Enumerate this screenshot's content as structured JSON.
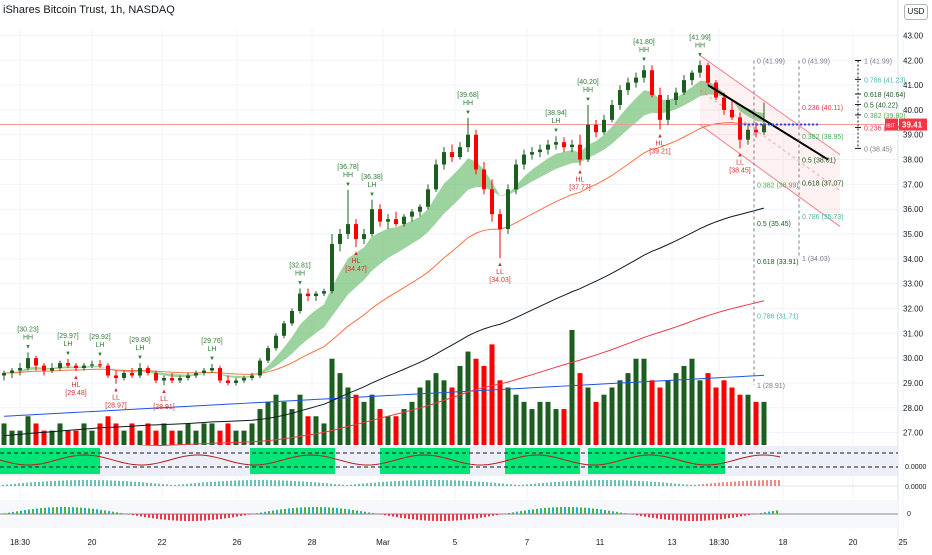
{
  "header": {
    "title": "iShares Bitcoin Trust, 1h, NASDAQ",
    "currency_button": "USD"
  },
  "colors": {
    "up": "#1b5e20",
    "down": "#ff0000",
    "ema_band": "#4caf50",
    "grid": "#f0f3fa",
    "price_line": "#ef9a9a",
    "fib": "#787b86",
    "fib_teal": "#4db6ac",
    "channel": "#f23645",
    "current_price_bg": "#f23645",
    "volume_avg": "#1e53e5",
    "band_green": "#00e676"
  },
  "chart_data": {
    "type": "candlestick",
    "ticker_label": "IBIT",
    "current_price": "39.41",
    "y_axis": {
      "min": 26.5,
      "max": 43.3,
      "ticks": [
        "43.00",
        "42.00",
        "41.00",
        "40.00",
        "39.00",
        "38.00",
        "37.00",
        "36.00",
        "35.00",
        "34.00",
        "33.00",
        "32.00",
        "31.00",
        "30.00",
        "29.00",
        "28.00",
        "27.00"
      ]
    },
    "x_axis": {
      "ticks": [
        "18:30",
        "20",
        "22",
        "26",
        "28",
        "Mar",
        "5",
        "7",
        "11",
        "13",
        "18:30",
        "18",
        "20",
        "25"
      ]
    },
    "candles": [
      [
        29.3,
        29.5,
        29.1,
        29.4
      ],
      [
        29.4,
        29.6,
        29.2,
        29.5
      ],
      [
        29.5,
        29.8,
        29.3,
        29.6
      ],
      [
        29.6,
        30.23,
        29.5,
        30.0
      ],
      [
        30.0,
        30.1,
        29.5,
        29.7
      ],
      [
        29.7,
        29.8,
        29.3,
        29.5
      ],
      [
        29.5,
        29.8,
        29.4,
        29.6
      ],
      [
        29.6,
        29.9,
        29.5,
        29.8
      ],
      [
        29.8,
        29.97,
        29.6,
        29.7
      ],
      [
        29.7,
        29.8,
        29.48,
        29.6
      ],
      [
        29.6,
        29.8,
        29.5,
        29.7
      ],
      [
        29.7,
        29.9,
        29.6,
        29.75
      ],
      [
        29.75,
        29.92,
        29.6,
        29.7
      ],
      [
        29.7,
        29.8,
        29.2,
        29.3
      ],
      [
        29.3,
        29.5,
        28.97,
        29.2
      ],
      [
        29.2,
        29.5,
        29.1,
        29.4
      ],
      [
        29.4,
        29.6,
        29.2,
        29.3
      ],
      [
        29.3,
        29.8,
        29.2,
        29.6
      ],
      [
        29.6,
        29.7,
        29.3,
        29.4
      ],
      [
        29.4,
        29.5,
        29.0,
        29.1
      ],
      [
        29.1,
        29.3,
        28.91,
        29.2
      ],
      [
        29.2,
        29.4,
        29.0,
        29.1
      ],
      [
        29.1,
        29.3,
        29.0,
        29.2
      ],
      [
        29.2,
        29.4,
        29.1,
        29.3
      ],
      [
        29.3,
        29.5,
        29.2,
        29.4
      ],
      [
        29.4,
        29.6,
        29.3,
        29.5
      ],
      [
        29.5,
        29.76,
        29.4,
        29.6
      ],
      [
        29.6,
        29.7,
        29.0,
        29.1
      ],
      [
        29.1,
        29.3,
        28.9,
        29.0
      ],
      [
        29.0,
        29.2,
        28.9,
        29.1
      ],
      [
        29.1,
        29.3,
        29.0,
        29.2
      ],
      [
        29.2,
        29.4,
        29.1,
        29.3
      ],
      [
        29.3,
        30.0,
        29.2,
        29.9
      ],
      [
        29.9,
        30.5,
        29.8,
        30.4
      ],
      [
        30.4,
        31.0,
        30.3,
        30.9
      ],
      [
        30.9,
        31.5,
        30.8,
        31.4
      ],
      [
        31.4,
        32.0,
        31.3,
        31.9
      ],
      [
        31.9,
        32.81,
        31.8,
        32.6
      ],
      [
        32.6,
        32.8,
        32.3,
        32.5
      ],
      [
        32.5,
        32.7,
        32.3,
        32.6
      ],
      [
        32.6,
        32.8,
        32.5,
        32.7
      ],
      [
        32.7,
        35.0,
        32.6,
        34.6
      ],
      [
        34.6,
        35.2,
        34.3,
        35.0
      ],
      [
        35.0,
        36.78,
        34.8,
        35.4
      ],
      [
        35.4,
        35.6,
        34.47,
        34.8
      ],
      [
        34.8,
        35.2,
        34.6,
        35.0
      ],
      [
        35.0,
        36.38,
        34.9,
        36.0
      ],
      [
        36.0,
        36.2,
        35.3,
        35.5
      ],
      [
        35.5,
        35.8,
        35.2,
        35.6
      ],
      [
        35.6,
        35.9,
        35.3,
        35.4
      ],
      [
        35.4,
        35.8,
        35.3,
        35.7
      ],
      [
        35.7,
        36.0,
        35.5,
        35.9
      ],
      [
        35.9,
        36.2,
        35.7,
        36.1
      ],
      [
        36.1,
        37.0,
        36.0,
        36.8
      ],
      [
        36.8,
        38.0,
        36.7,
        37.8
      ],
      [
        37.8,
        38.5,
        37.6,
        38.3
      ],
      [
        38.3,
        38.6,
        37.9,
        38.1
      ],
      [
        38.1,
        38.7,
        38.0,
        38.5
      ],
      [
        38.5,
        39.68,
        38.3,
        39.0
      ],
      [
        39.0,
        39.2,
        37.4,
        37.6
      ],
      [
        37.6,
        37.9,
        36.6,
        36.8
      ],
      [
        36.8,
        37.2,
        35.5,
        35.8
      ],
      [
        35.8,
        36.0,
        34.03,
        35.2
      ],
      [
        35.2,
        37.0,
        35.0,
        36.8
      ],
      [
        36.8,
        38.0,
        36.6,
        37.8
      ],
      [
        37.8,
        38.4,
        37.6,
        38.2
      ],
      [
        38.2,
        38.5,
        38.0,
        38.3
      ],
      [
        38.3,
        38.6,
        38.1,
        38.4
      ],
      [
        38.4,
        38.8,
        38.2,
        38.6
      ],
      [
        38.6,
        38.94,
        38.4,
        38.7
      ],
      [
        38.7,
        38.9,
        38.3,
        38.5
      ],
      [
        38.5,
        38.8,
        38.3,
        38.6
      ],
      [
        38.6,
        39.0,
        37.77,
        38.0
      ],
      [
        38.0,
        40.2,
        37.9,
        39.4
      ],
      [
        39.4,
        39.6,
        38.9,
        39.1
      ],
      [
        39.1,
        39.8,
        39.0,
        39.6
      ],
      [
        39.6,
        40.4,
        39.5,
        40.2
      ],
      [
        40.2,
        41.0,
        40.0,
        40.8
      ],
      [
        40.8,
        41.3,
        40.6,
        41.1
      ],
      [
        41.1,
        41.5,
        40.9,
        41.3
      ],
      [
        41.3,
        41.8,
        41.1,
        41.6
      ],
      [
        41.6,
        41.8,
        40.5,
        40.6
      ],
      [
        40.6,
        40.9,
        39.21,
        39.6
      ],
      [
        39.6,
        40.6,
        39.4,
        40.4
      ],
      [
        40.4,
        40.9,
        40.2,
        40.7
      ],
      [
        40.7,
        41.4,
        40.6,
        41.2
      ],
      [
        41.2,
        41.6,
        41.0,
        41.5
      ],
      [
        41.5,
        41.99,
        41.3,
        41.8
      ],
      [
        41.8,
        41.9,
        41.0,
        41.1
      ],
      [
        41.1,
        41.2,
        40.4,
        40.5
      ],
      [
        40.5,
        40.7,
        39.8,
        40.0
      ],
      [
        40.0,
        40.4,
        39.6,
        39.7
      ],
      [
        39.7,
        39.9,
        38.45,
        38.8
      ],
      [
        38.8,
        39.4,
        38.6,
        39.2
      ],
      [
        39.2,
        39.5,
        38.9,
        39.1
      ],
      [
        39.1,
        40.3,
        39.0,
        39.41
      ]
    ],
    "volume_grades": [
      3,
      2,
      2,
      4,
      3,
      2,
      2,
      3,
      2,
      2,
      3,
      2,
      3,
      4,
      3,
      2,
      3,
      2,
      3,
      2,
      3,
      2,
      2,
      3,
      2,
      3,
      3,
      2,
      3,
      2,
      2,
      3,
      5,
      6,
      7,
      6,
      5,
      7,
      4,
      4,
      3,
      12,
      10,
      8,
      7,
      6,
      7,
      5,
      4,
      4,
      5,
      6,
      8,
      9,
      10,
      9,
      8,
      11,
      13,
      12,
      11,
      14,
      9,
      8,
      7,
      6,
      5,
      6,
      6,
      5,
      5,
      16,
      10,
      8,
      6,
      7,
      8,
      9,
      10,
      12,
      12,
      9,
      8,
      9,
      10,
      11,
      12,
      9,
      10,
      8,
      9,
      8,
      7,
      7,
      6,
      6
    ],
    "annotations": [
      {
        "text": "[30.23]",
        "sub": "HH",
        "i": 3,
        "at": "high",
        "color": "up"
      },
      {
        "text": "[29.97]",
        "sub": "LH",
        "i": 8,
        "at": "high",
        "color": "up"
      },
      {
        "text": "[29.48]",
        "sub": "HL",
        "i": 9,
        "at": "low",
        "color": "down"
      },
      {
        "text": "[29.92]",
        "sub": "LH",
        "i": 12,
        "at": "high",
        "color": "up"
      },
      {
        "text": "[28.97]",
        "sub": "LL",
        "i": 14,
        "at": "low",
        "color": "down"
      },
      {
        "text": "[29.80]",
        "sub": "LH",
        "i": 17,
        "at": "high",
        "color": "up"
      },
      {
        "text": "[28.91]",
        "sub": "LL",
        "i": 20,
        "at": "low",
        "color": "down"
      },
      {
        "text": "[29.76]",
        "sub": "LH",
        "i": 26,
        "at": "high",
        "color": "up"
      },
      {
        "text": "[32.81]",
        "sub": "HH",
        "i": 37,
        "at": "high",
        "color": "up"
      },
      {
        "text": "[36.78]",
        "sub": "HH",
        "i": 43,
        "at": "high",
        "color": "up"
      },
      {
        "text": "[34.47]",
        "sub": "HL",
        "i": 44,
        "at": "low",
        "color": "down"
      },
      {
        "text": "[36.38]",
        "sub": "LH",
        "i": 46,
        "at": "high",
        "color": "up"
      },
      {
        "text": "[39.68]",
        "sub": "HH",
        "i": 58,
        "at": "high",
        "color": "up"
      },
      {
        "text": "[34.03]",
        "sub": "LL",
        "i": 62,
        "at": "low",
        "color": "down"
      },
      {
        "text": "[38.94]",
        "sub": "LH",
        "i": 69,
        "at": "high",
        "color": "up"
      },
      {
        "text": "[37.77]",
        "sub": "HL",
        "i": 72,
        "at": "low",
        "color": "down"
      },
      {
        "text": "[40.20]",
        "sub": "HH",
        "i": 73,
        "at": "high",
        "color": "up"
      },
      {
        "text": "[41.80]",
        "sub": "HH",
        "i": 80,
        "at": "high",
        "color": "up"
      },
      {
        "text": "[39.21]",
        "sub": "HL",
        "i": 82,
        "at": "low",
        "color": "down"
      },
      {
        "text": "[41.99]",
        "sub": "HH",
        "i": 87,
        "at": "high",
        "color": "up"
      },
      {
        "text": "[38.45]",
        "sub": "LL",
        "i": 92,
        "at": "low",
        "color": "down"
      }
    ],
    "fib_left": [
      {
        "label": "0 (41.99)",
        "price": 41.99
      },
      {
        "label": "0.236 (40.11)",
        "price": 40.11
      },
      {
        "label": "0.382 (38.95)",
        "price": 38.95
      },
      {
        "label": "0.5 (38.01)",
        "price": 38.01
      },
      {
        "label": "0.618 (37.07)",
        "price": 37.07
      },
      {
        "label": "0.786 (35.73)",
        "price": 35.73
      },
      {
        "label": "1 (34.03)",
        "price": 34.03
      }
    ],
    "fib_mid": [
      {
        "label": "0 (41.99)",
        "price": 41.99
      },
      {
        "label": "0.382 (36.99)",
        "price": 36.99
      },
      {
        "label": "0.5 (35.45)",
        "price": 35.45
      },
      {
        "label": "0.618 (33.91)",
        "price": 33.91
      },
      {
        "label": "0.786 (31.71)",
        "price": 31.71
      },
      {
        "label": "1 (28.91)",
        "price": 28.91
      }
    ],
    "fib_right": [
      {
        "label": "1 (41.99)",
        "price": 41.99
      },
      {
        "label": "0.786 (41.23)",
        "price": 41.23
      },
      {
        "label": "0.618 (40.64)",
        "price": 40.64
      },
      {
        "label": "0.5 (40.22)",
        "price": 40.22
      },
      {
        "label": "0.382 (39.80)",
        "price": 39.8
      },
      {
        "label": "0.236 (39.29)",
        "price": 39.29
      },
      {
        "label": "0 (38.45)",
        "price": 38.45
      }
    ],
    "oscillator_values": [
      "0.0000",
      "0.0000",
      "0"
    ]
  }
}
